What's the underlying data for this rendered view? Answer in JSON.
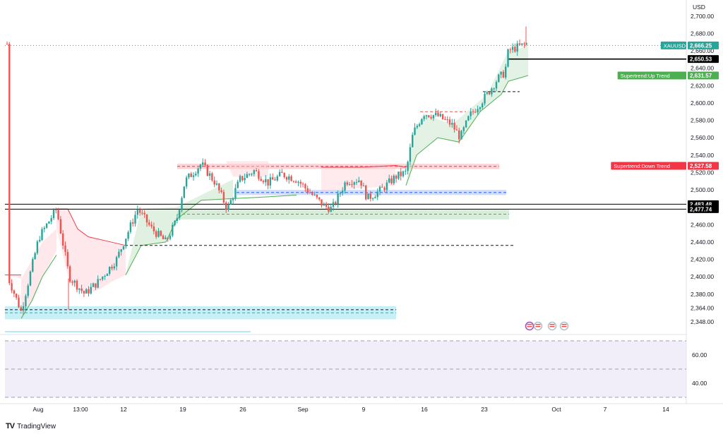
{
  "chart_data": {
    "type": "candlestick",
    "symbol": "XAUUSD",
    "currency": "USD",
    "last_price": "2,666.25",
    "price_axis": {
      "min": 2340,
      "max": 2712,
      "ticks": [
        "2,348.00",
        "2,364.00",
        "2,380.00",
        "2,400.00",
        "2,420.00",
        "2,440.00",
        "2,460.00",
        "2,500.00",
        "2,520.00",
        "2,540.00",
        "2,560.00",
        "2,580.00",
        "2,600.00",
        "2,620.00",
        "2,640.00",
        "2,660.00",
        "2,680.00",
        "2,700.00"
      ],
      "tick_values": [
        2348,
        2364,
        2380,
        2400,
        2420,
        2440,
        2460,
        2500,
        2520,
        2540,
        2560,
        2580,
        2600,
        2620,
        2640,
        2660,
        2680,
        2700
      ]
    },
    "oscillator_axis": {
      "ticks": [
        "60.00",
        "40.00"
      ],
      "tick_values": [
        60,
        40
      ]
    },
    "time_axis": {
      "labels": [
        "Aug",
        "13:00",
        "12",
        "19",
        "26",
        "Sep",
        "9",
        "16",
        "23",
        "Oct",
        "7",
        "14"
      ]
    },
    "price_labels": [
      {
        "text": "XAUUSD",
        "value": "2,666.25",
        "price": 2666.25,
        "color": "#26a69a"
      },
      {
        "text": "",
        "value": "2,650.53",
        "price": 2650.53,
        "color": "#000000"
      },
      {
        "text": "Supertrend:Up Trend",
        "value": "2,631.57",
        "price": 2631.57,
        "color": "#4caf50"
      },
      {
        "text": "Supertrend:Down Trend",
        "value": "2,527.58",
        "price": 2527.58,
        "color": "#f23645"
      },
      {
        "text": "",
        "value": "2,483.48",
        "price": 2483.48,
        "color": "#000000"
      },
      {
        "text": "",
        "value": "2,477.74",
        "price": 2477.74,
        "color": "#000000"
      }
    ],
    "horizontal_lines": [
      2483.48,
      2477.74
    ],
    "zones": [
      {
        "name": "resistance-zone",
        "low": 2524,
        "high": 2530,
        "color": "#f23645"
      },
      {
        "name": "blue-zone",
        "low": 2494,
        "high": 2500,
        "color": "#2962ff"
      },
      {
        "name": "green-zone",
        "low": 2466,
        "high": 2478,
        "color": "#4caf50"
      },
      {
        "name": "cyan-zone",
        "low": 2351,
        "high": 2366,
        "color": "#00bcd4"
      }
    ],
    "dashed_levels": [
      2613,
      2590,
      2436,
      2362
    ],
    "ray": 2650.53,
    "series": [
      {
        "name": "Supertrend:Up Trend",
        "color": "#4caf50"
      },
      {
        "name": "Supertrend:Down Trend",
        "color": "#f23645"
      }
    ],
    "grid": false
  },
  "colors": {
    "up": "#26a69a",
    "down": "#ef5350",
    "osc_band": "#ede7f6"
  },
  "branding": {
    "name": "TradingView"
  }
}
